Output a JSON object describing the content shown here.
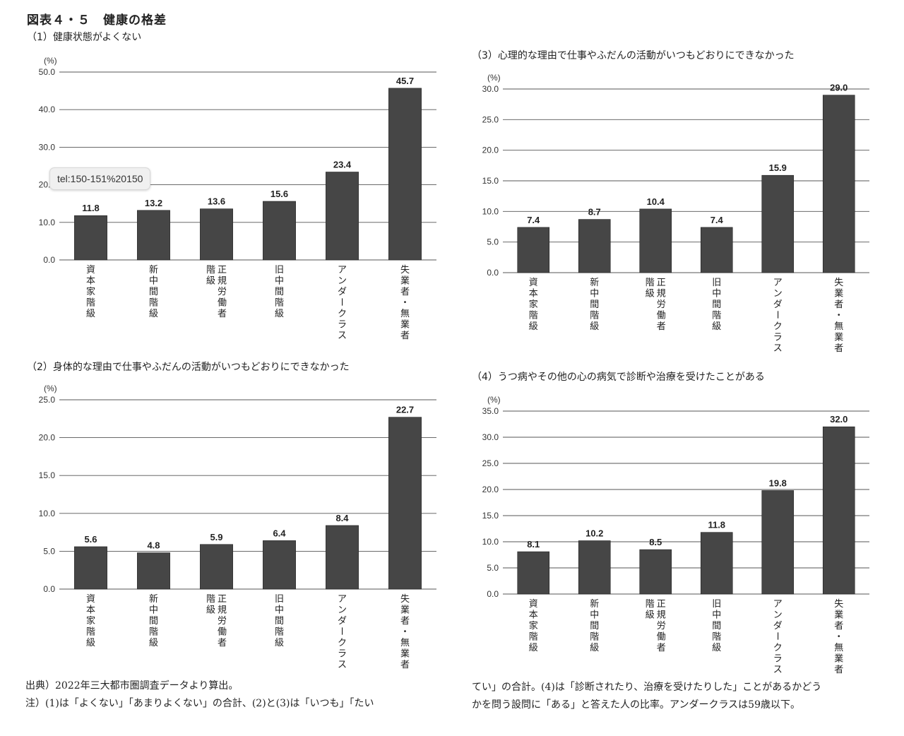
{
  "figure": {
    "title": "図表４・５　健康の格差"
  },
  "tooltip": "tel:150-151%20150",
  "notes": {
    "source": "出典）2022年三大都市圏調査データより算出。",
    "note_line1": "注）(1)は「よくない」「あまりよくない」の合計、(2)と(3)は「いつも」「たい",
    "note_line2": "てい」の合計。(4)は「診断されたり、治療を受けたりした」ことがあるかどう",
    "note_line3": "かを問う設問に「ある」と答えた人の比率。アンダークラスは59歳以下。"
  },
  "chart_data": [
    {
      "type": "bar",
      "title": "（1）健康状態がよくない",
      "ylabel": "(%)",
      "ylim": [
        0,
        50
      ],
      "yticks": [
        "0.0",
        "10.0",
        "20.0",
        "30.0",
        "40.0",
        "50.0"
      ],
      "categories": [
        "資本家階級",
        "新中間階級",
        "正規労働者階級",
        "旧中間階級",
        "アンダークラス",
        "失業者・無業者"
      ],
      "values": [
        11.8,
        13.2,
        13.6,
        15.6,
        23.4,
        45.7
      ],
      "labels": [
        "11.8",
        "13.2",
        "13.6",
        "15.6",
        "23.4",
        "45.7"
      ],
      "grid": true
    },
    {
      "type": "bar",
      "title": "（2）身体的な理由で仕事やふだんの活動がいつもどおりにできなかった",
      "ylabel": "(%)",
      "ylim": [
        0,
        25
      ],
      "yticks": [
        "0.0",
        "5.0",
        "10.0",
        "15.0",
        "20.0",
        "25.0"
      ],
      "categories": [
        "資本家階級",
        "新中間階級",
        "正規労働者階級",
        "旧中間階級",
        "アンダークラス",
        "失業者・無業者"
      ],
      "values": [
        5.6,
        4.8,
        5.9,
        6.4,
        8.4,
        22.7
      ],
      "labels": [
        "5.6",
        "4.8",
        "5.9",
        "6.4",
        "8.4",
        "22.7"
      ],
      "grid": true
    },
    {
      "type": "bar",
      "title": "（3）心理的な理由で仕事やふだんの活動がいつもどおりにできなかった",
      "ylabel": "(%)",
      "ylim": [
        0,
        30
      ],
      "yticks": [
        "0.0",
        "5.0",
        "10.0",
        "15.0",
        "20.0",
        "25.0",
        "30.0"
      ],
      "categories": [
        "資本家階級",
        "新中間階級",
        "正規労働者階級",
        "旧中間階級",
        "アンダークラス",
        "失業者・無業者"
      ],
      "values": [
        7.4,
        8.7,
        10.4,
        7.4,
        15.9,
        29.0
      ],
      "labels": [
        "7.4",
        "8.7",
        "10.4",
        "7.4",
        "15.9",
        "29.0"
      ],
      "grid": true
    },
    {
      "type": "bar",
      "title": "（4）うつ病やその他の心の病気で診断や治療を受けたことがある",
      "ylabel": "(%)",
      "ylim": [
        0,
        35
      ],
      "yticks": [
        "0.0",
        "5.0",
        "10.0",
        "15.0",
        "20.0",
        "25.0",
        "30.0",
        "35.0"
      ],
      "categories": [
        "資本家階級",
        "新中間階級",
        "正規労働者階級",
        "旧中間階級",
        "アンダークラス",
        "失業者・無業者"
      ],
      "values": [
        8.1,
        10.2,
        8.5,
        11.8,
        19.8,
        32.0
      ],
      "labels": [
        "8.1",
        "10.2",
        "8.5",
        "11.8",
        "19.8",
        "32.0"
      ],
      "grid": true
    }
  ]
}
